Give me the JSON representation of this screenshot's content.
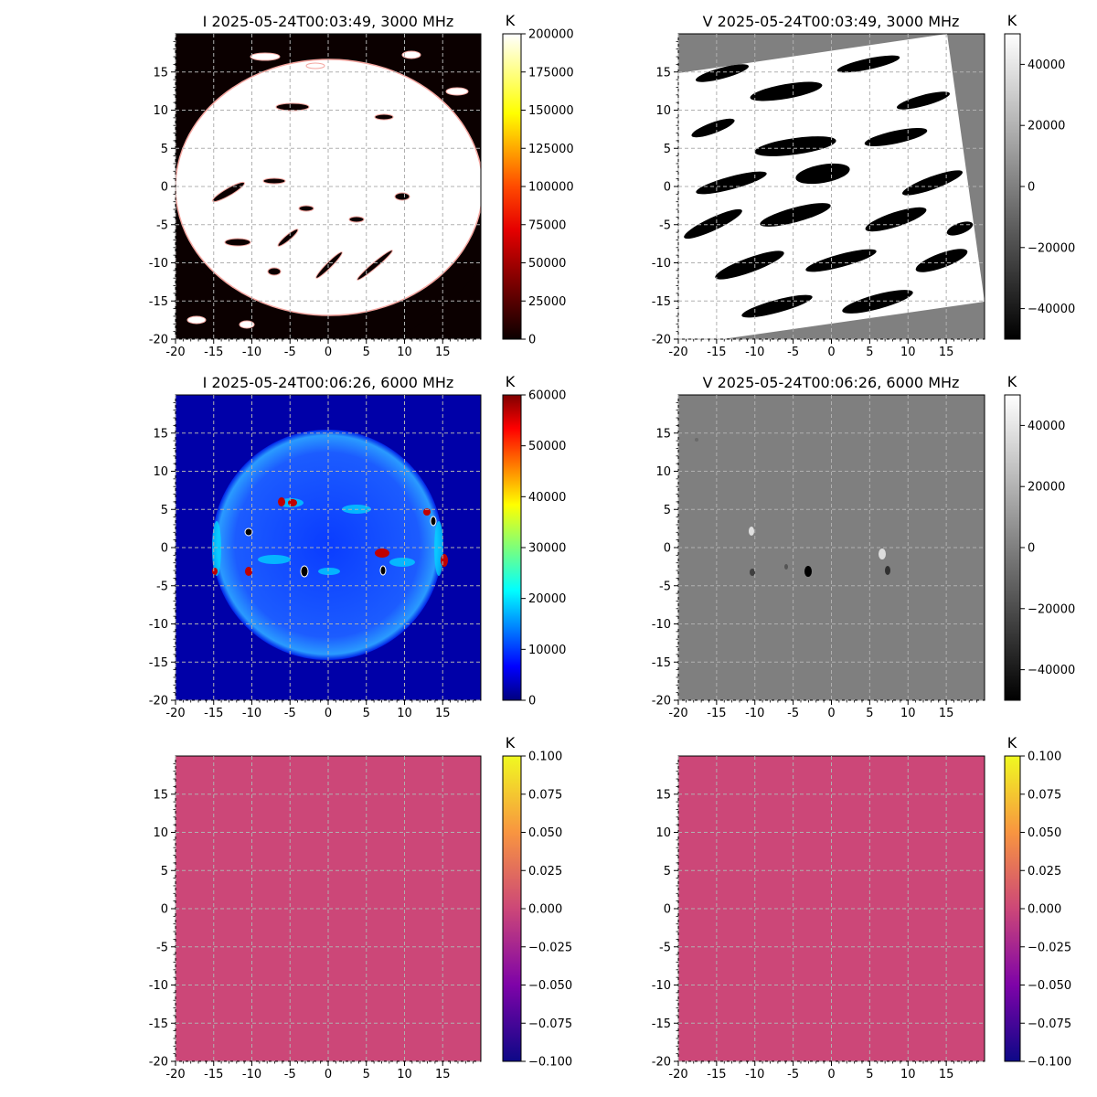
{
  "chart_data": [
    {
      "type": "heatmap",
      "title": "I 2025-05-24T00:03:49, 3000 MHz",
      "stokes": "I",
      "colormap": "hot",
      "colorbar_unit": "K",
      "xlim": [
        -20,
        20
      ],
      "ylim": [
        -20,
        20
      ],
      "xticks": [
        "-20",
        "-15",
        "-10",
        "-5",
        "0",
        "5",
        "10",
        "15"
      ],
      "yticks": [
        "-20",
        "-15",
        "-10",
        "-5",
        "0",
        "5",
        "10",
        "15"
      ],
      "grid": true,
      "colorbar_ticks": [
        "0",
        "25000",
        "50000",
        "75000",
        "100000",
        "125000",
        "150000",
        "175000",
        "200000"
      ],
      "colorbar_range": [
        0,
        200000
      ]
    },
    {
      "type": "heatmap",
      "title": "V 2025-05-24T00:03:49, 3000 MHz",
      "stokes": "V",
      "colormap": "gray",
      "colorbar_unit": "K",
      "xlim": [
        -20,
        20
      ],
      "ylim": [
        -20,
        20
      ],
      "xticks": [
        "-20",
        "-15",
        "-10",
        "-5",
        "0",
        "5",
        "10",
        "15"
      ],
      "yticks": [
        "-20",
        "-15",
        "-10",
        "-5",
        "0",
        "5",
        "10",
        "15"
      ],
      "grid": true,
      "colorbar_ticks": [
        "−40000",
        "−20000",
        "0",
        "20000",
        "40000"
      ],
      "colorbar_range": [
        -50000,
        50000
      ]
    },
    {
      "type": "heatmap",
      "title": "I 2025-05-24T00:06:26, 6000 MHz",
      "stokes": "I",
      "colormap": "jet",
      "colorbar_unit": "K",
      "xlim": [
        -20,
        20
      ],
      "ylim": [
        -20,
        20
      ],
      "xticks": [
        "-20",
        "-15",
        "-10",
        "-5",
        "0",
        "5",
        "10",
        "15"
      ],
      "yticks": [
        "-20",
        "-15",
        "-10",
        "-5",
        "0",
        "5",
        "10",
        "15"
      ],
      "grid": true,
      "colorbar_ticks": [
        "0",
        "10000",
        "20000",
        "30000",
        "40000",
        "50000",
        "60000"
      ],
      "colorbar_range": [
        0,
        60000
      ]
    },
    {
      "type": "heatmap",
      "title": "V 2025-05-24T00:06:26, 6000 MHz",
      "stokes": "V",
      "colormap": "gray",
      "colorbar_unit": "K",
      "xlim": [
        -20,
        20
      ],
      "ylim": [
        -20,
        20
      ],
      "xticks": [
        "-20",
        "-15",
        "-10",
        "-5",
        "0",
        "5",
        "10",
        "15"
      ],
      "yticks": [
        "-20",
        "-15",
        "-10",
        "-5",
        "0",
        "5",
        "10",
        "15"
      ],
      "grid": true,
      "colorbar_ticks": [
        "−40000",
        "−20000",
        "0",
        "20000",
        "40000"
      ],
      "colorbar_range": [
        -50000,
        50000
      ]
    },
    {
      "type": "heatmap",
      "title": "",
      "colormap": "plasma",
      "colorbar_unit": "K",
      "xlim": [
        -20,
        20
      ],
      "ylim": [
        -20,
        20
      ],
      "xticks": [
        "-20",
        "-15",
        "-10",
        "-5",
        "0",
        "5",
        "10",
        "15"
      ],
      "yticks": [
        "-20",
        "-15",
        "-10",
        "-5",
        "0",
        "5",
        "10",
        "15"
      ],
      "grid": true,
      "fill_value": 0,
      "colorbar_ticks": [
        "−0.100",
        "−0.075",
        "−0.050",
        "−0.025",
        "0.000",
        "0.025",
        "0.050",
        "0.075",
        "0.100"
      ],
      "colorbar_range": [
        -0.1,
        0.1
      ]
    },
    {
      "type": "heatmap",
      "title": "",
      "colormap": "plasma",
      "colorbar_unit": "K",
      "xlim": [
        -20,
        20
      ],
      "ylim": [
        -20,
        20
      ],
      "xticks": [
        "-20",
        "-15",
        "-10",
        "-5",
        "0",
        "5",
        "10",
        "15"
      ],
      "yticks": [
        "-20",
        "-15",
        "-10",
        "-5",
        "0",
        "5",
        "10",
        "15"
      ],
      "grid": true,
      "fill_value": 0,
      "colorbar_ticks": [
        "−0.100",
        "−0.075",
        "−0.050",
        "−0.025",
        "0.000",
        "0.025",
        "0.050",
        "0.075",
        "0.100"
      ],
      "colorbar_range": [
        -0.1,
        0.1
      ]
    }
  ]
}
